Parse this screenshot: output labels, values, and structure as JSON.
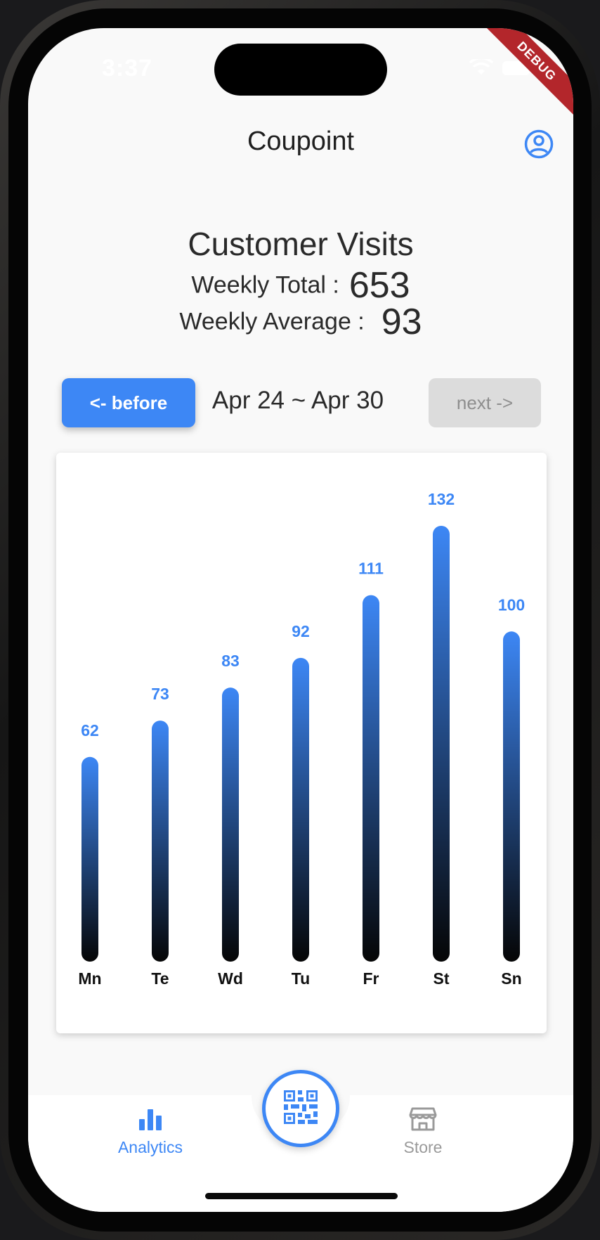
{
  "status_bar": {
    "time": "3:37",
    "debug_label": "DEBUG"
  },
  "app_bar": {
    "title": "Coupoint",
    "account_icon": "account-circle-icon"
  },
  "header": {
    "heading": "Customer Visits",
    "weekly_total_label": "Weekly Total :",
    "weekly_total_value": "653",
    "weekly_average_label": "Weekly Average :",
    "weekly_average_value": "93"
  },
  "week_nav": {
    "before_label": "<- before",
    "date_range": "Apr 24 ~ Apr 30",
    "next_label": "next ->"
  },
  "chart_data": {
    "type": "bar",
    "categories": [
      "Mn",
      "Te",
      "Wd",
      "Tu",
      "Fr",
      "St",
      "Sn"
    ],
    "values": [
      62,
      73,
      83,
      92,
      111,
      132,
      100
    ],
    "title": "",
    "xlabel": "",
    "ylabel": "",
    "ylim": [
      0,
      132
    ],
    "grid": false,
    "value_labels": true,
    "colors": {
      "bar_top": "#3d87f5",
      "bar_bottom": "#050505",
      "label": "#3d87f5"
    }
  },
  "bottom_nav": {
    "items": [
      {
        "label": "Analytics",
        "icon": "bar-chart-icon",
        "active": true
      },
      {
        "label": "Store",
        "icon": "storefront-icon",
        "active": false
      }
    ],
    "fab_icon": "qr-code-icon"
  },
  "colors": {
    "accent": "#3d87f5",
    "disabled": "#dcdcdc",
    "debug": "#b3262b"
  }
}
